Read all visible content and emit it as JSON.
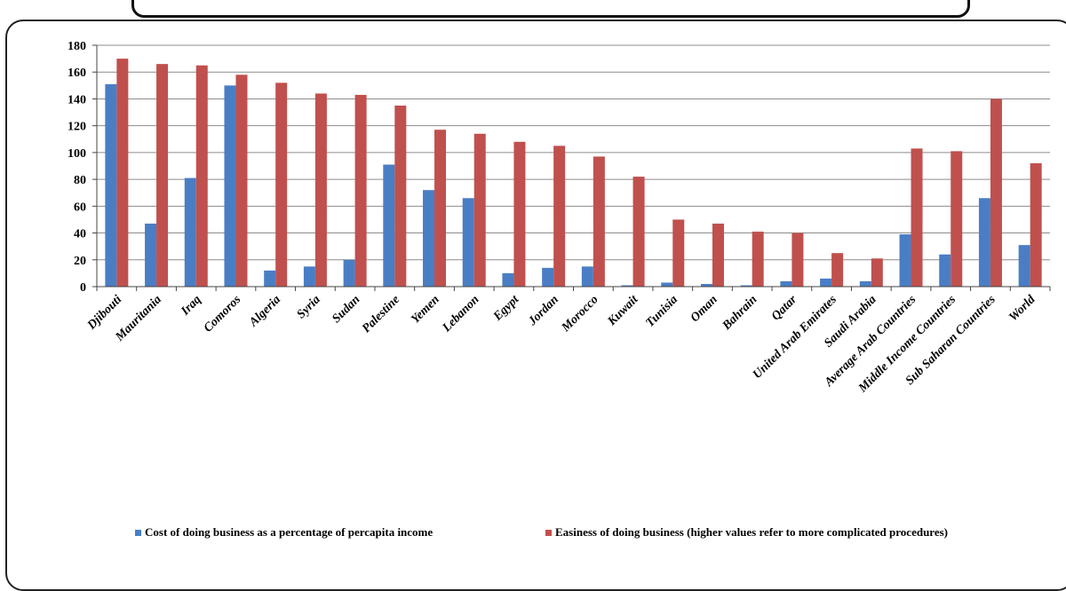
{
  "chart_data": {
    "type": "bar",
    "categories": [
      "Djibouti",
      "Mauritania",
      "Iraq",
      "Comoros",
      "Algeria",
      "Syria",
      "Sudan",
      "Palestine",
      "Yemen",
      "Lebanon",
      "Egypt",
      "Jordan",
      "Morocco",
      "Kuwait",
      "Tunisia",
      "Oman",
      "Bahrain",
      "Qatar",
      "United Arab Emirates",
      "Saudi Arabia",
      "Average Arab Countries",
      "Middle Income Countries",
      "Sub Saharan Countries",
      "World"
    ],
    "series": [
      {
        "name": "Cost of doing business as a percentage of percapita income",
        "color": "#4a7ec4",
        "values": [
          151,
          47,
          81,
          150,
          12,
          15,
          20,
          91,
          72,
          66,
          10,
          14,
          15,
          1,
          3,
          2,
          1,
          4,
          6,
          4,
          39,
          24,
          66,
          31
        ]
      },
      {
        "name": "Easiness of doing business (higher values refer to more complicated procedures)",
        "color": "#c0504d",
        "values": [
          170,
          166,
          165,
          158,
          152,
          144,
          143,
          135,
          117,
          114,
          108,
          105,
          97,
          82,
          50,
          47,
          41,
          40,
          25,
          21,
          103,
          101,
          140,
          92
        ]
      }
    ],
    "ylim": [
      0,
      180
    ],
    "yticks": [
      "0",
      "20",
      "40",
      "60",
      "80",
      "100",
      "120",
      "140",
      "160",
      "180"
    ],
    "grid": true,
    "legend_position": "bottom"
  }
}
